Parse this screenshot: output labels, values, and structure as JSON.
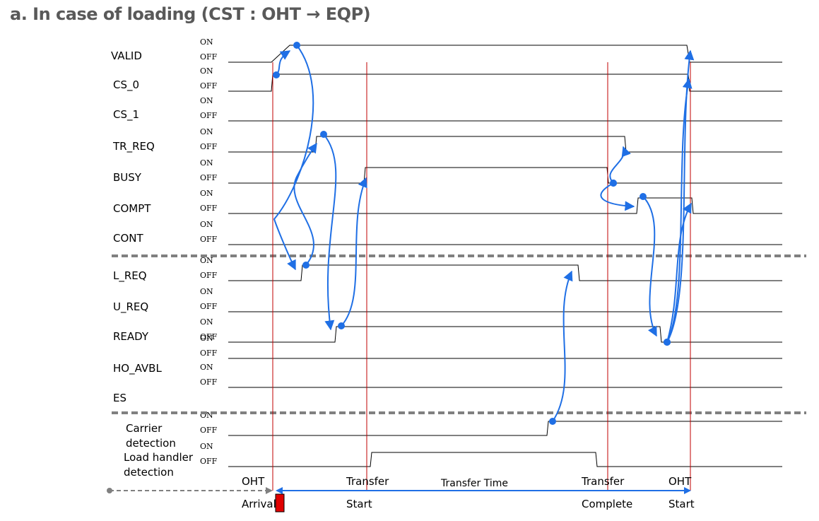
{
  "title": "a. In case of loading (CST : OHT → EQP)",
  "state_on": "ON",
  "state_off": "OFF",
  "signals": [
    {
      "name": "VALID"
    },
    {
      "name": "CS_0"
    },
    {
      "name": "CS_1"
    },
    {
      "name": "TR_REQ"
    },
    {
      "name": "BUSY"
    },
    {
      "name": "COMPT"
    },
    {
      "name": "CONT"
    },
    {
      "name": "L_REQ"
    },
    {
      "name": "U_REQ"
    },
    {
      "name": "READY"
    },
    {
      "name": "HO_AVBL"
    },
    {
      "name": "ES"
    },
    {
      "name": "Carrier\ndetection"
    },
    {
      "name": "Load handler\ndetection"
    }
  ],
  "timeline": [
    {
      "top": "OHT",
      "bottom": "Arrival"
    },
    {
      "top": "Transfer",
      "bottom": "Start"
    },
    {
      "top": "Transfer Time",
      "bottom": ""
    },
    {
      "top": "Transfer",
      "bottom": "Complete"
    },
    {
      "top": "OHT",
      "bottom": "Start"
    }
  ],
  "colors": {
    "handshake_arrow": "#1f6fe5",
    "event_line": "#c00000",
    "separator": "#808080",
    "arrival_marker": "#e00000"
  }
}
